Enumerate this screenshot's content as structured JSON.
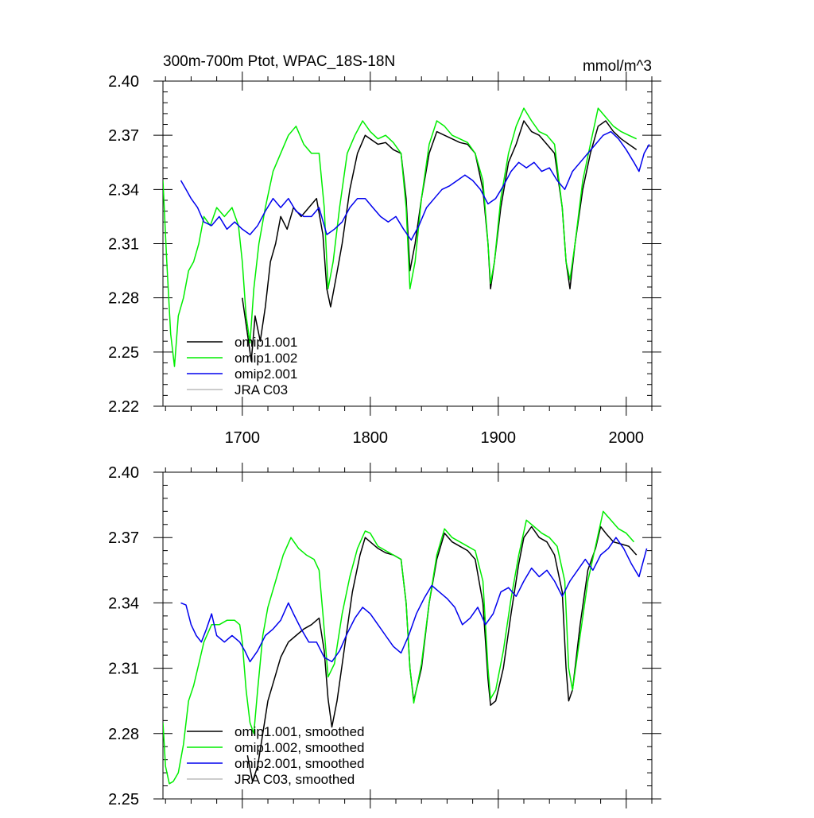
{
  "colors": {
    "omip1_001": "#000000",
    "omip1_002": "#00ee00",
    "omip2_001": "#0000ee",
    "jra_c03": "#bbbbbb",
    "axis": "#000000",
    "background": "#ffffff"
  },
  "chart_data": [
    {
      "type": "line",
      "title": "300m-700m Ptot, WPAC_18S-18N",
      "units": "mmol/m^3",
      "xlim": [
        1638,
        2020
      ],
      "ylim": [
        2.22,
        2.4
      ],
      "x_ticks": [
        1700,
        1800,
        1900,
        2000
      ],
      "x_tick_labels": [
        "1700",
        "1800",
        "1900",
        "2000"
      ],
      "y_ticks": [
        2.22,
        2.25,
        2.28,
        2.31,
        2.34,
        2.37,
        2.4
      ],
      "y_tick_labels": [
        "2.22",
        "2.25",
        "2.28",
        "2.31",
        "2.34",
        "2.37",
        "2.40"
      ],
      "legend_position": "bottom-left",
      "legend": [
        "omip1.001",
        "omip1.002",
        "omip2.001",
        "JRA C03"
      ],
      "series": [
        {
          "name": "omip1.001",
          "key": "omip1_001",
          "x": [
            1700,
            1704,
            1707,
            1710,
            1714,
            1718,
            1722,
            1726,
            1730,
            1735,
            1740,
            1746,
            1752,
            1758,
            1763,
            1766,
            1769,
            1773,
            1778,
            1784,
            1790,
            1796,
            1800,
            1806,
            1812,
            1818,
            1824,
            1828,
            1831,
            1835,
            1840,
            1846,
            1852,
            1858,
            1864,
            1870,
            1876,
            1882,
            1888,
            1892,
            1894,
            1897,
            1902,
            1908,
            1914,
            1920,
            1926,
            1932,
            1938,
            1944,
            1950,
            1953,
            1956,
            1960,
            1966,
            1972,
            1978,
            1984,
            1990,
            1996,
            2002,
            2008
          ],
          "y": [
            2.28,
            2.26,
            2.245,
            2.27,
            2.256,
            2.275,
            2.3,
            2.31,
            2.325,
            2.318,
            2.33,
            2.325,
            2.33,
            2.335,
            2.315,
            2.285,
            2.275,
            2.29,
            2.31,
            2.34,
            2.36,
            2.37,
            2.368,
            2.365,
            2.366,
            2.362,
            2.36,
            2.335,
            2.295,
            2.31,
            2.335,
            2.36,
            2.372,
            2.37,
            2.368,
            2.366,
            2.365,
            2.36,
            2.34,
            2.31,
            2.285,
            2.3,
            2.33,
            2.355,
            2.365,
            2.378,
            2.372,
            2.37,
            2.365,
            2.36,
            2.33,
            2.3,
            2.285,
            2.31,
            2.34,
            2.36,
            2.375,
            2.378,
            2.372,
            2.368,
            2.365,
            2.362
          ]
        },
        {
          "name": "omip1.002",
          "key": "omip1_002",
          "x": [
            1638,
            1641,
            1644,
            1647,
            1650,
            1654,
            1658,
            1662,
            1666,
            1670,
            1675,
            1680,
            1686,
            1692,
            1697,
            1700,
            1703,
            1706,
            1709,
            1713,
            1718,
            1724,
            1730,
            1736,
            1742,
            1748,
            1754,
            1760,
            1764,
            1767,
            1771,
            1776,
            1782,
            1788,
            1794,
            1800,
            1806,
            1812,
            1818,
            1824,
            1828,
            1831,
            1835,
            1840,
            1846,
            1852,
            1858,
            1864,
            1870,
            1876,
            1882,
            1888,
            1892,
            1894,
            1897,
            1902,
            1908,
            1914,
            1920,
            1926,
            1932,
            1938,
            1944,
            1950,
            1953,
            1956,
            1960,
            1966,
            1972,
            1978,
            1984,
            1990,
            1996,
            2002,
            2008
          ],
          "y": [
            2.345,
            2.3,
            2.26,
            2.242,
            2.27,
            2.28,
            2.295,
            2.3,
            2.31,
            2.325,
            2.32,
            2.33,
            2.325,
            2.33,
            2.32,
            2.3,
            2.27,
            2.255,
            2.285,
            2.31,
            2.33,
            2.35,
            2.36,
            2.37,
            2.375,
            2.365,
            2.36,
            2.36,
            2.33,
            2.285,
            2.3,
            2.33,
            2.36,
            2.37,
            2.378,
            2.372,
            2.368,
            2.37,
            2.366,
            2.36,
            2.33,
            2.285,
            2.3,
            2.335,
            2.365,
            2.378,
            2.375,
            2.37,
            2.368,
            2.366,
            2.36,
            2.345,
            2.31,
            2.288,
            2.3,
            2.335,
            2.36,
            2.375,
            2.385,
            2.378,
            2.372,
            2.37,
            2.365,
            2.33,
            2.3,
            2.29,
            2.31,
            2.345,
            2.365,
            2.385,
            2.38,
            2.375,
            2.372,
            2.37,
            2.368
          ]
        },
        {
          "name": "omip2.001",
          "key": "omip2_001",
          "x": [
            1652,
            1656,
            1660,
            1665,
            1670,
            1676,
            1682,
            1688,
            1694,
            1700,
            1706,
            1712,
            1718,
            1724,
            1730,
            1736,
            1742,
            1748,
            1754,
            1760,
            1766,
            1772,
            1778,
            1784,
            1790,
            1796,
            1802,
            1808,
            1814,
            1820,
            1826,
            1832,
            1838,
            1844,
            1850,
            1856,
            1862,
            1868,
            1874,
            1880,
            1886,
            1892,
            1898,
            1904,
            1910,
            1916,
            1922,
            1928,
            1934,
            1940,
            1946,
            1952,
            1958,
            1964,
            1970,
            1976,
            1982,
            1988,
            1994,
            2000,
            2006,
            2010,
            2014,
            2018
          ],
          "y": [
            2.345,
            2.34,
            2.335,
            2.33,
            2.322,
            2.32,
            2.325,
            2.318,
            2.322,
            2.318,
            2.315,
            2.32,
            2.328,
            2.335,
            2.33,
            2.335,
            2.328,
            2.325,
            2.325,
            2.33,
            2.315,
            2.318,
            2.322,
            2.33,
            2.335,
            2.335,
            2.33,
            2.325,
            2.322,
            2.325,
            2.318,
            2.312,
            2.32,
            2.33,
            2.335,
            2.34,
            2.342,
            2.345,
            2.348,
            2.345,
            2.34,
            2.332,
            2.335,
            2.342,
            2.35,
            2.355,
            2.352,
            2.355,
            2.35,
            2.352,
            2.345,
            2.34,
            2.35,
            2.355,
            2.36,
            2.365,
            2.37,
            2.372,
            2.368,
            2.362,
            2.355,
            2.35,
            2.36,
            2.365
          ]
        },
        {
          "name": "JRA C03",
          "key": "jra_c03",
          "x": [],
          "y": []
        }
      ]
    },
    {
      "type": "line",
      "title": "",
      "units": "",
      "xlim": [
        1638,
        2020
      ],
      "ylim": [
        2.25,
        2.4
      ],
      "x_ticks": [
        1700,
        1800,
        1900,
        2000
      ],
      "x_tick_labels": [],
      "y_ticks": [
        2.25,
        2.28,
        2.31,
        2.34,
        2.37,
        2.4
      ],
      "y_tick_labels": [
        "2.25",
        "2.28",
        "2.31",
        "2.34",
        "2.37",
        "2.40"
      ],
      "legend_position": "bottom-left",
      "legend": [
        "omip1.001, smoothed",
        "omip1.002, smoothed",
        "omip2.001, smoothed",
        "JRA C03, smoothed"
      ],
      "series": [
        {
          "name": "omip1.001, smoothed",
          "key": "omip1_001",
          "x": [
            1704,
            1708,
            1712,
            1716,
            1720,
            1725,
            1730,
            1736,
            1742,
            1748,
            1754,
            1760,
            1764,
            1767,
            1770,
            1774,
            1780,
            1786,
            1792,
            1796,
            1800,
            1806,
            1812,
            1818,
            1824,
            1828,
            1831,
            1834,
            1840,
            1846,
            1852,
            1858,
            1864,
            1870,
            1876,
            1882,
            1888,
            1892,
            1894,
            1898,
            1904,
            1910,
            1916,
            1920,
            1926,
            1932,
            1938,
            1944,
            1950,
            1953,
            1955,
            1958,
            1964,
            1970,
            1976,
            1980,
            1984,
            1990,
            1996,
            2002,
            2008
          ],
          "y": [
            2.27,
            2.258,
            2.265,
            2.28,
            2.295,
            2.305,
            2.315,
            2.322,
            2.325,
            2.328,
            2.33,
            2.333,
            2.318,
            2.296,
            2.283,
            2.295,
            2.32,
            2.345,
            2.362,
            2.37,
            2.368,
            2.365,
            2.363,
            2.362,
            2.36,
            2.34,
            2.31,
            2.295,
            2.31,
            2.34,
            2.36,
            2.372,
            2.368,
            2.366,
            2.364,
            2.36,
            2.34,
            2.305,
            2.293,
            2.295,
            2.31,
            2.335,
            2.358,
            2.37,
            2.375,
            2.37,
            2.368,
            2.362,
            2.345,
            2.31,
            2.295,
            2.3,
            2.33,
            2.355,
            2.365,
            2.375,
            2.372,
            2.368,
            2.367,
            2.366,
            2.362
          ]
        },
        {
          "name": "omip1.002, smoothed",
          "key": "omip1_002",
          "x": [
            1638,
            1640,
            1643,
            1646,
            1650,
            1654,
            1658,
            1662,
            1666,
            1670,
            1676,
            1682,
            1688,
            1694,
            1698,
            1700,
            1703,
            1706,
            1709,
            1712,
            1716,
            1720,
            1726,
            1732,
            1738,
            1744,
            1750,
            1756,
            1760,
            1763,
            1767,
            1772,
            1778,
            1784,
            1790,
            1796,
            1800,
            1806,
            1812,
            1818,
            1824,
            1828,
            1831,
            1834,
            1840,
            1846,
            1852,
            1858,
            1864,
            1870,
            1876,
            1882,
            1888,
            1892,
            1894,
            1898,
            1904,
            1910,
            1916,
            1922,
            1928,
            1934,
            1940,
            1946,
            1952,
            1955,
            1958,
            1964,
            1970,
            1976,
            1982,
            1988,
            1994,
            2000,
            2006
          ],
          "y": [
            2.285,
            2.265,
            2.257,
            2.258,
            2.262,
            2.275,
            2.295,
            2.302,
            2.312,
            2.322,
            2.33,
            2.33,
            2.332,
            2.332,
            2.33,
            2.322,
            2.3,
            2.285,
            2.28,
            2.3,
            2.325,
            2.338,
            2.35,
            2.362,
            2.37,
            2.365,
            2.362,
            2.36,
            2.355,
            2.335,
            2.306,
            2.312,
            2.335,
            2.352,
            2.365,
            2.373,
            2.372,
            2.366,
            2.364,
            2.362,
            2.36,
            2.34,
            2.31,
            2.294,
            2.312,
            2.34,
            2.362,
            2.374,
            2.37,
            2.368,
            2.366,
            2.364,
            2.35,
            2.31,
            2.296,
            2.3,
            2.318,
            2.342,
            2.362,
            2.378,
            2.375,
            2.372,
            2.37,
            2.366,
            2.35,
            2.31,
            2.3,
            2.325,
            2.35,
            2.366,
            2.382,
            2.378,
            2.374,
            2.372,
            2.368
          ]
        },
        {
          "name": "omip2.001, smoothed",
          "key": "omip2_001",
          "x": [
            1652,
            1656,
            1660,
            1664,
            1668,
            1672,
            1676,
            1680,
            1686,
            1692,
            1698,
            1702,
            1706,
            1712,
            1718,
            1724,
            1730,
            1736,
            1740,
            1746,
            1752,
            1758,
            1764,
            1770,
            1776,
            1782,
            1788,
            1794,
            1800,
            1806,
            1812,
            1818,
            1824,
            1830,
            1836,
            1842,
            1848,
            1854,
            1860,
            1866,
            1872,
            1878,
            1884,
            1890,
            1896,
            1902,
            1908,
            1914,
            1920,
            1926,
            1932,
            1938,
            1944,
            1950,
            1956,
            1962,
            1968,
            1974,
            1980,
            1986,
            1992,
            1998,
            2004,
            2010,
            2016
          ],
          "y": [
            2.34,
            2.339,
            2.33,
            2.325,
            2.322,
            2.328,
            2.335,
            2.325,
            2.322,
            2.325,
            2.322,
            2.318,
            2.313,
            2.318,
            2.325,
            2.328,
            2.332,
            2.34,
            2.335,
            2.328,
            2.322,
            2.322,
            2.315,
            2.313,
            2.318,
            2.326,
            2.333,
            2.338,
            2.335,
            2.33,
            2.325,
            2.32,
            2.317,
            2.325,
            2.335,
            2.342,
            2.348,
            2.345,
            2.342,
            2.338,
            2.33,
            2.333,
            2.338,
            2.33,
            2.335,
            2.345,
            2.347,
            2.343,
            2.35,
            2.356,
            2.352,
            2.355,
            2.35,
            2.343,
            2.35,
            2.355,
            2.36,
            2.355,
            2.362,
            2.365,
            2.37,
            2.365,
            2.358,
            2.352,
            2.365
          ]
        },
        {
          "name": "JRA C03, smoothed",
          "key": "jra_c03",
          "x": [],
          "y": []
        }
      ]
    }
  ]
}
